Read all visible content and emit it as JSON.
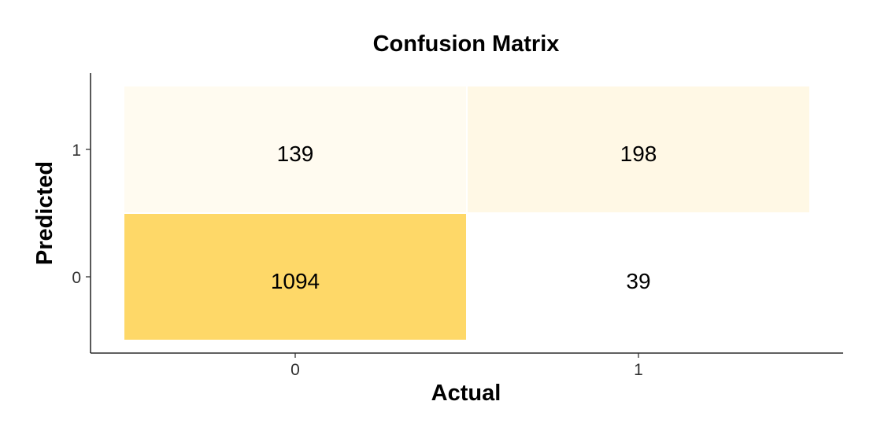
{
  "chart_data": {
    "type": "heatmap",
    "title": "Confusion Matrix",
    "xlabel": "Actual",
    "ylabel": "Predicted",
    "x_categories": [
      "0",
      "1"
    ],
    "y_categories": [
      "0",
      "1"
    ],
    "cells": [
      {
        "actual": "0",
        "predicted": "1",
        "value": 139,
        "label": "139",
        "color": "#FFFBF0"
      },
      {
        "actual": "1",
        "predicted": "1",
        "value": 198,
        "label": "198",
        "color": "#FFF8E5"
      },
      {
        "actual": "0",
        "predicted": "0",
        "value": 1094,
        "label": "1094",
        "color": "#FED868"
      },
      {
        "actual": "1",
        "predicted": "0",
        "value": 39,
        "label": "39",
        "color": "#FFFFFF"
      }
    ],
    "grid": false,
    "legend": "none"
  }
}
